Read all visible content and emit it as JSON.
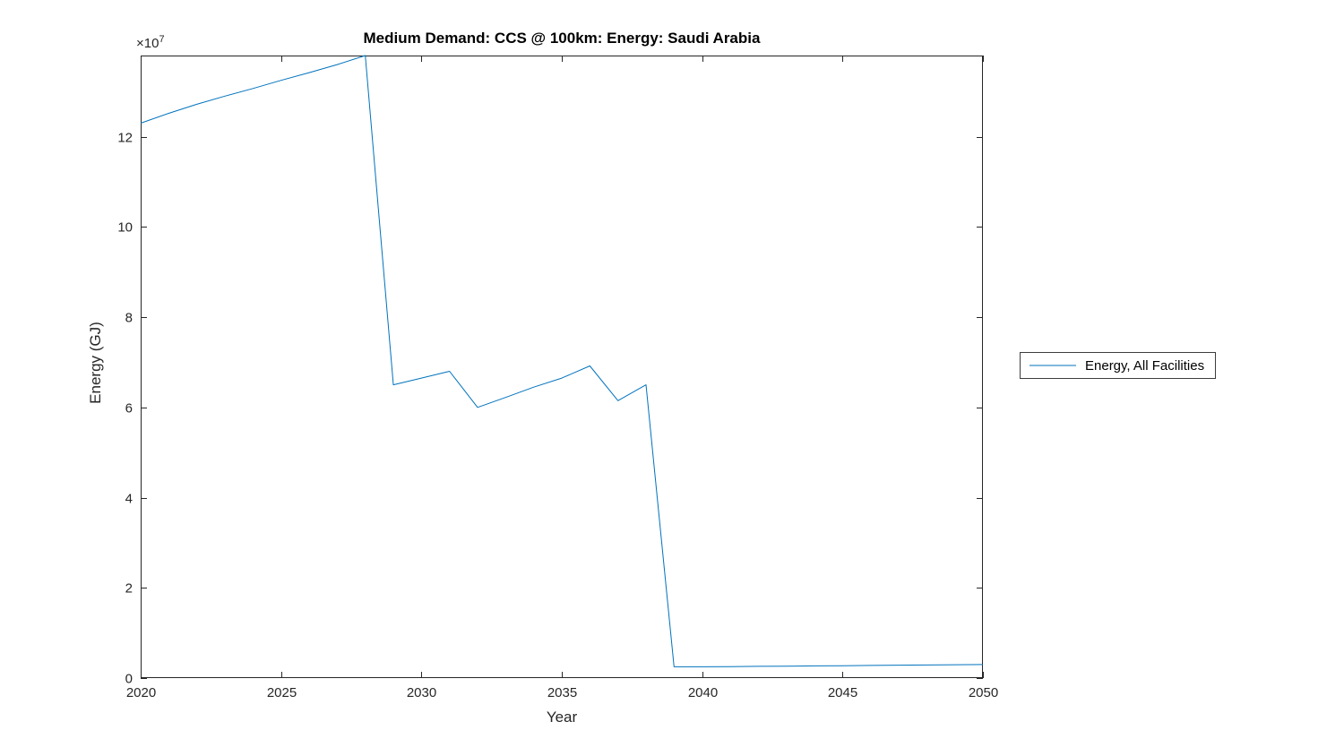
{
  "figure": {
    "background": "#ffffff",
    "axis_color": "#262626",
    "offset_text": {
      "base": "×10",
      "exponent": "7"
    }
  },
  "legend": {
    "label": "Energy, All Facilities"
  },
  "chart_data": {
    "type": "line",
    "title": "Medium Demand: CCS @ 100km: Energy: Saudi Arabia",
    "xlabel": "Year",
    "ylabel": "Energy (GJ)",
    "value_scale": 10000000,
    "value_scale_label": "×10⁷",
    "xlim": [
      2020,
      2050
    ],
    "ylim": [
      0,
      13.8
    ],
    "x_ticks": [
      2020,
      2025,
      2030,
      2035,
      2040,
      2045,
      2050
    ],
    "y_ticks": [
      0,
      2,
      4,
      6,
      8,
      10,
      12
    ],
    "grid": false,
    "legend_position": "right-outside",
    "x": [
      2020,
      2021,
      2022,
      2023,
      2024,
      2025,
      2026,
      2027,
      2028,
      2029,
      2030,
      2031,
      2032,
      2033,
      2034,
      2035,
      2036,
      2037,
      2038,
      2039,
      2040,
      2041,
      2042,
      2043,
      2044,
      2045,
      2046,
      2047,
      2048,
      2049,
      2050
    ],
    "series": [
      {
        "name": "Energy, All Facilities",
        "color": "#0072BD",
        "values": [
          12.3,
          12.52,
          12.72,
          12.9,
          13.07,
          13.25,
          13.42,
          13.6,
          13.8,
          6.5,
          6.65,
          6.8,
          6.0,
          6.22,
          6.45,
          6.65,
          6.92,
          6.15,
          6.5,
          0.25,
          0.25,
          0.255,
          0.26,
          0.265,
          0.27,
          0.275,
          0.28,
          0.285,
          0.29,
          0.295,
          0.3
        ]
      }
    ]
  }
}
